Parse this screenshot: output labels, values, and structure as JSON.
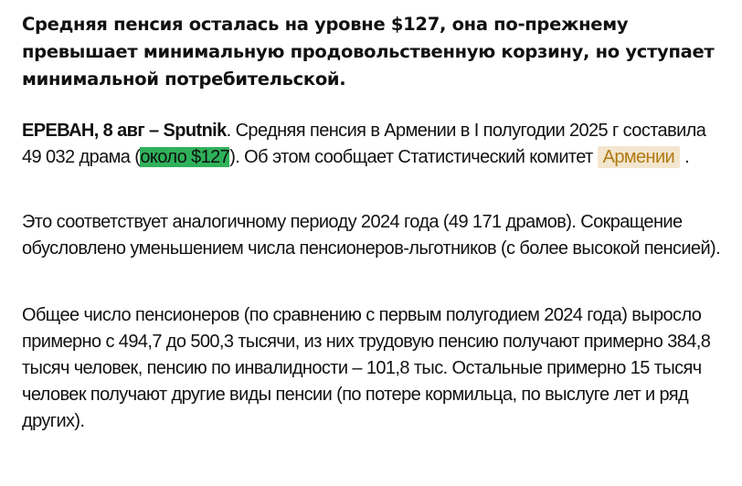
{
  "article": {
    "title": "Средняя пенсия осталась на уровне $127, она по-прежнему превышает минимальную продовольственную корзину, но уступает минимальной потребительской.",
    "p1": {
      "lead": "ЕРЕВАН, 8 авг – Sputnik",
      "text1": ". Средняя пенсия в Армении в I полугодии 2025 г составила 49 032 драма (",
      "highlight": "около $127",
      "text2": "). Об этом сообщает Статистический комитет ",
      "tag": "Армении",
      "text3": " .",
      "highlight_color": "#2fb15a",
      "tag_color": "#b07a12"
    },
    "p2": "Это соответствует аналогичному периоду 2024 года (49 171 драмов). Сокращение обусловлено уменьшением числа пенсионеров-льготников (с более высокой пенсией).",
    "p3": "Общее число пенсионеров (по сравнению с первым полугодием 2024 года) выросло примерно с 494,7 до 500,3 тысячи, из них трудовую пенсию получают примерно 384,8 тысяч человек, пенсию по инвалидности – 101,8 тыс. Остальные примерно 15 тысяч человек получают другие виды пенсии (по потере кормильца, по выслуге лет и ряд других)."
  }
}
